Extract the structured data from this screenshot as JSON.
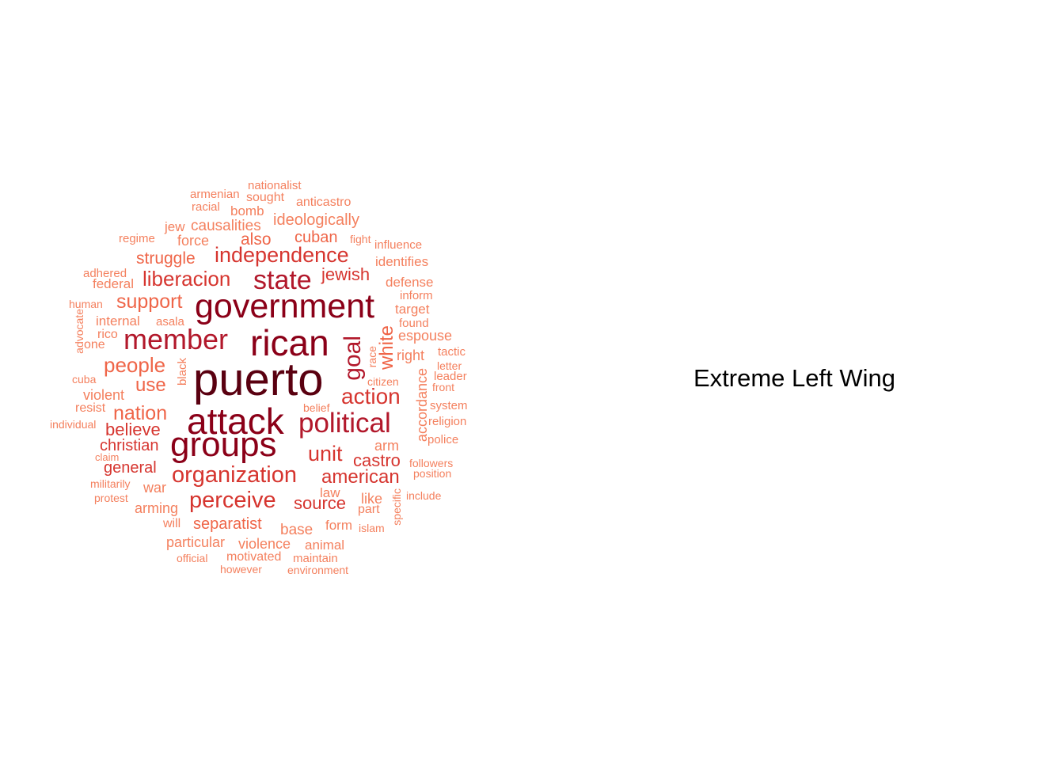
{
  "caption": "Extreme Left Wing",
  "palette": {
    "t1": "#5a0010",
    "t2": "#8b0018",
    "t3": "#b2182b",
    "t4": "#d6352f",
    "t5": "#ef6548",
    "t6": "#f4805e"
  },
  "words": [
    {
      "text": "puerto",
      "tier": "t1"
    },
    {
      "text": "attack",
      "tier": "t2"
    },
    {
      "text": "groups",
      "tier": "t2"
    },
    {
      "text": "rican",
      "tier": "t2"
    },
    {
      "text": "government",
      "tier": "t2"
    },
    {
      "text": "member",
      "tier": "t3"
    },
    {
      "text": "political",
      "tier": "t3"
    },
    {
      "text": "state",
      "tier": "t3"
    },
    {
      "text": "organization",
      "tier": "t4"
    },
    {
      "text": "perceive",
      "tier": "t4"
    },
    {
      "text": "independence",
      "tier": "t4"
    },
    {
      "text": "liberacion",
      "tier": "t4"
    },
    {
      "text": "action",
      "tier": "t4"
    },
    {
      "text": "unit",
      "tier": "t4"
    },
    {
      "text": "goal",
      "tier": "t3"
    },
    {
      "text": "american",
      "tier": "t4"
    },
    {
      "text": "jewish",
      "tier": "t4"
    },
    {
      "text": "castro",
      "tier": "t4"
    },
    {
      "text": "source",
      "tier": "t4"
    },
    {
      "text": "people",
      "tier": "t5"
    },
    {
      "text": "support",
      "tier": "t5"
    },
    {
      "text": "nation",
      "tier": "t5"
    },
    {
      "text": "use",
      "tier": "t5"
    },
    {
      "text": "believe",
      "tier": "t4"
    },
    {
      "text": "christian",
      "tier": "t4"
    },
    {
      "text": "general",
      "tier": "t4"
    },
    {
      "text": "white",
      "tier": "t5"
    },
    {
      "text": "struggle",
      "tier": "t5"
    },
    {
      "text": "separatist",
      "tier": "t5"
    },
    {
      "text": "also",
      "tier": "t5"
    },
    {
      "text": "cuban",
      "tier": "t5"
    },
    {
      "text": "ideologically",
      "tier": "t6"
    },
    {
      "text": "causalities",
      "tier": "t6"
    },
    {
      "text": "force",
      "tier": "t6"
    },
    {
      "text": "jew",
      "tier": "t6"
    },
    {
      "text": "bomb",
      "tier": "t6"
    },
    {
      "text": "racial",
      "tier": "t6"
    },
    {
      "text": "armenian",
      "tier": "t6"
    },
    {
      "text": "sought",
      "tier": "t6"
    },
    {
      "text": "nationalist",
      "tier": "t6"
    },
    {
      "text": "anticastro",
      "tier": "t6"
    },
    {
      "text": "regime",
      "tier": "t6"
    },
    {
      "text": "fight",
      "tier": "t6"
    },
    {
      "text": "influence",
      "tier": "t6"
    },
    {
      "text": "identifies",
      "tier": "t6"
    },
    {
      "text": "defense",
      "tier": "t6"
    },
    {
      "text": "inform",
      "tier": "t6"
    },
    {
      "text": "target",
      "tier": "t6"
    },
    {
      "text": "found",
      "tier": "t6"
    },
    {
      "text": "espouse",
      "tier": "t6"
    },
    {
      "text": "right",
      "tier": "t6"
    },
    {
      "text": "tactic",
      "tier": "t6"
    },
    {
      "text": "letter",
      "tier": "t6"
    },
    {
      "text": "leader",
      "tier": "t6"
    },
    {
      "text": "front",
      "tier": "t6"
    },
    {
      "text": "system",
      "tier": "t6"
    },
    {
      "text": "religion",
      "tier": "t6"
    },
    {
      "text": "police",
      "tier": "t6"
    },
    {
      "text": "followers",
      "tier": "t6"
    },
    {
      "text": "position",
      "tier": "t6"
    },
    {
      "text": "include",
      "tier": "t6"
    },
    {
      "text": "adhered",
      "tier": "t6"
    },
    {
      "text": "federal",
      "tier": "t6"
    },
    {
      "text": "human",
      "tier": "t6"
    },
    {
      "text": "internal",
      "tier": "t6"
    },
    {
      "text": "asala",
      "tier": "t6"
    },
    {
      "text": "advocate",
      "tier": "t6"
    },
    {
      "text": "rico",
      "tier": "t6"
    },
    {
      "text": "one",
      "tier": "t6"
    },
    {
      "text": "cuba",
      "tier": "t6"
    },
    {
      "text": "violent",
      "tier": "t6"
    },
    {
      "text": "resist",
      "tier": "t6"
    },
    {
      "text": "individual",
      "tier": "t6"
    },
    {
      "text": "claim",
      "tier": "t6"
    },
    {
      "text": "militarily",
      "tier": "t6"
    },
    {
      "text": "protest",
      "tier": "t6"
    },
    {
      "text": "war",
      "tier": "t6"
    },
    {
      "text": "arming",
      "tier": "t6"
    },
    {
      "text": "will",
      "tier": "t6"
    },
    {
      "text": "particular",
      "tier": "t6"
    },
    {
      "text": "official",
      "tier": "t6"
    },
    {
      "text": "violence",
      "tier": "t6"
    },
    {
      "text": "motivated",
      "tier": "t6"
    },
    {
      "text": "however",
      "tier": "t6"
    },
    {
      "text": "animal",
      "tier": "t6"
    },
    {
      "text": "maintain",
      "tier": "t6"
    },
    {
      "text": "environment",
      "tier": "t6"
    },
    {
      "text": "base",
      "tier": "t6"
    },
    {
      "text": "form",
      "tier": "t6"
    },
    {
      "text": "islam",
      "tier": "t6"
    },
    {
      "text": "law",
      "tier": "t6"
    },
    {
      "text": "part",
      "tier": "t6"
    },
    {
      "text": "like",
      "tier": "t6"
    },
    {
      "text": "arm",
      "tier": "t6"
    },
    {
      "text": "specific",
      "tier": "t6"
    },
    {
      "text": "accordance",
      "tier": "t6"
    },
    {
      "text": "race",
      "tier": "t6"
    },
    {
      "text": "citizen",
      "tier": "t6"
    },
    {
      "text": "belief",
      "tier": "t6"
    },
    {
      "text": "black",
      "tier": "t6"
    }
  ]
}
